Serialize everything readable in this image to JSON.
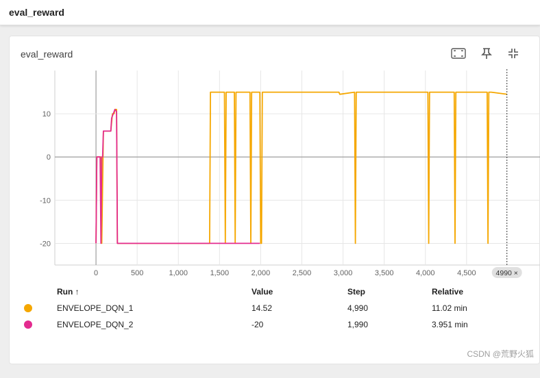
{
  "header": {
    "title": "eval_reward"
  },
  "card": {
    "title": "eval_reward",
    "tools": [
      {
        "name": "fit-domain-icon"
      },
      {
        "name": "pin-icon"
      },
      {
        "name": "collapse-icon"
      }
    ]
  },
  "chart_data": {
    "type": "line",
    "title": "",
    "xlabel": "",
    "ylabel": "",
    "xlim": [
      -500,
      5400
    ],
    "ylim": [
      -25,
      20
    ],
    "x_ticks": [
      "0",
      "500",
      "1,000",
      "1,500",
      "2,000",
      "2,500",
      "3,000",
      "3,500",
      "4,000",
      "4,500"
    ],
    "y_ticks": [
      "-20",
      "-10",
      "0",
      "10"
    ],
    "cursor_step": 4990,
    "cursor_label": "4990 ×",
    "grid": true,
    "series": [
      {
        "name": "ENVELOPE_DQN_1",
        "color": "#f5a700",
        "x": [
          0,
          10,
          20,
          40,
          60,
          70,
          90,
          110,
          170,
          180,
          200,
          220,
          230,
          250,
          260,
          270,
          1380,
          1390,
          1550,
          1560,
          1570,
          1580,
          1590,
          1680,
          1690,
          1700,
          1860,
          1870,
          1880,
          1890,
          1990,
          2000,
          2010,
          2020,
          2030,
          2040,
          2050,
          2950,
          2960,
          3140,
          3150,
          3160,
          3900,
          4030,
          4040,
          4050,
          4350,
          4360,
          4370,
          4750,
          4760,
          4770,
          4780,
          4800,
          4990
        ],
        "y": [
          -20,
          0,
          0,
          0,
          0,
          -20,
          6,
          6,
          6,
          6,
          10,
          10,
          11,
          11,
          -20,
          -20,
          -20,
          15,
          15,
          15,
          -20,
          15,
          15,
          15,
          -20,
          15,
          15,
          15,
          -20,
          15,
          15,
          -20,
          -20,
          15,
          15,
          15,
          15,
          15,
          14.5,
          15,
          -20,
          15,
          15,
          15,
          -20,
          15,
          15,
          -20,
          15,
          15,
          -20,
          15,
          15,
          15,
          14.52
        ]
      },
      {
        "name": "ENVELOPE_DQN_2",
        "color": "#e32b8f",
        "x": [
          0,
          10,
          30,
          50,
          60,
          70,
          80,
          90,
          120,
          170,
          180,
          190,
          210,
          230,
          250,
          260,
          270,
          1990
        ],
        "y": [
          -20,
          0,
          0,
          0,
          -20,
          0,
          0,
          6,
          6,
          6,
          6,
          9,
          10,
          11,
          10.5,
          -20,
          -20,
          -20
        ]
      }
    ]
  },
  "legend": {
    "headers": {
      "run": "Run ↑",
      "value": "Value",
      "step": "Step",
      "relative": "Relative"
    },
    "rows": [
      {
        "run": "ENVELOPE_DQN_1",
        "value": "14.52",
        "step": "4,990",
        "relative": "11.02 min",
        "color": "#f5a700"
      },
      {
        "run": "ENVELOPE_DQN_2",
        "value": "-20",
        "step": "1,990",
        "relative": "3.951 min",
        "color": "#e32b8f"
      }
    ]
  },
  "watermark": "CSDN @荒野火狐"
}
